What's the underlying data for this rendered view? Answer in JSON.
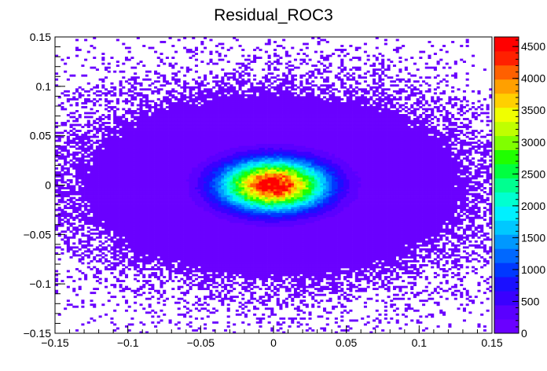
{
  "chart_data": {
    "type": "heatmap",
    "title": "Residual_ROC3",
    "xlabel": "",
    "ylabel": "",
    "xlim": [
      -0.15,
      0.15
    ],
    "ylim": [
      -0.15,
      0.15
    ],
    "x_ticks": [
      {
        "value": -0.15,
        "label": "−0.15"
      },
      {
        "value": -0.1,
        "label": "−0.1"
      },
      {
        "value": -0.05,
        "label": "−0.05"
      },
      {
        "value": 0,
        "label": "0"
      },
      {
        "value": 0.05,
        "label": "0.05"
      },
      {
        "value": 0.1,
        "label": "0.1"
      },
      {
        "value": 0.15,
        "label": "0.15"
      }
    ],
    "y_ticks": [
      {
        "value": -0.15,
        "label": "−0.15"
      },
      {
        "value": -0.1,
        "label": "−0.1"
      },
      {
        "value": -0.05,
        "label": "−0.05"
      },
      {
        "value": 0,
        "label": "0"
      },
      {
        "value": 0.05,
        "label": "0.05"
      },
      {
        "value": 0.1,
        "label": "0.1"
      },
      {
        "value": 0.15,
        "label": "0.15"
      }
    ],
    "colorbar": {
      "min": 0,
      "max": 4650,
      "ticks": [
        {
          "value": 0,
          "label": "0"
        },
        {
          "value": 500,
          "label": "500"
        },
        {
          "value": 1000,
          "label": "1000"
        },
        {
          "value": 1500,
          "label": "1500"
        },
        {
          "value": 2000,
          "label": "2000"
        },
        {
          "value": 2500,
          "label": "2500"
        },
        {
          "value": 3000,
          "label": "3000"
        },
        {
          "value": 3500,
          "label": "3500"
        },
        {
          "value": 4000,
          "label": "4000"
        },
        {
          "value": 4500,
          "label": "4500"
        }
      ],
      "colors": [
        "#6a00ff",
        "#5a00ff",
        "#3a00ff",
        "#1a10ff",
        "#0038ff",
        "#0068ff",
        "#0098ff",
        "#00c8ff",
        "#00f0ff",
        "#00ffd0",
        "#00ff90",
        "#00ff40",
        "#20ff00",
        "#80ff00",
        "#c0ff00",
        "#f0ff00",
        "#ffd000",
        "#ffa000",
        "#ff6000",
        "#ff2000",
        "#ff0000"
      ]
    },
    "distribution": {
      "peak_x": 0.0,
      "peak_y": 0.0,
      "peak_value": 4650,
      "sigma_x": 0.024,
      "sigma_y": 0.017
    },
    "bins_x": 150,
    "bins_y": 150,
    "grid": false
  }
}
